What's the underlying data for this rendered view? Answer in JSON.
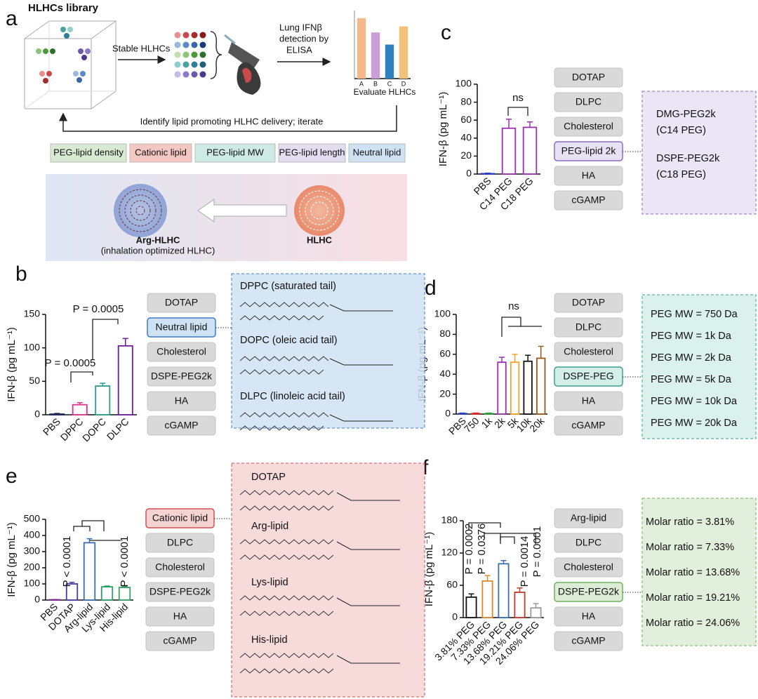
{
  "panel_labels": [
    "a",
    "b",
    "c",
    "d",
    "e",
    "f"
  ],
  "schematic": {
    "title": "HLHCs library",
    "stable": "Stable HLHCs",
    "elisa": [
      "Lung IFNβ",
      "detection by",
      "ELISA"
    ],
    "feedback": "Identify lipid promoting HLHC delivery; iterate",
    "tags": [
      "PEG-lipid density",
      "Cationic lipid",
      "PEG-lipid MW",
      "PEG-lipid length",
      "Neutral lipid"
    ],
    "tag_colors": [
      "#d9ead3",
      "#f4c7c3",
      "#cdeae5",
      "#e4dcf1",
      "#cfe2f3"
    ],
    "optimized": "Arg-HLHC",
    "optimized_note": "(inhalation optimized HLHC)",
    "start": "HLHC"
  },
  "chart_data": [
    {
      "type": "bar",
      "xlabel": "Evaluate HLHCs",
      "categories": [
        "A",
        "B",
        "C",
        "D"
      ],
      "values": [
        16,
        12.2,
        9,
        13.8
      ],
      "colors": [
        "#f5b98a",
        "#c9a0d6",
        "#2f7fc1",
        "#f2c27a"
      ],
      "ylim": [
        0,
        18
      ]
    },
    {
      "type": "bar",
      "ylabel": "IFN-β (pg mL⁻¹)",
      "categories": [
        "PBS",
        "DPPC",
        "DOPC",
        "DLPC"
      ],
      "values": [
        1,
        15,
        43,
        103
      ],
      "errors": [
        1,
        3,
        4,
        11
      ],
      "colors": [
        "#1f2a5a",
        "#e0338a",
        "#2a9d8f",
        "#6a1b9a"
      ],
      "ylim": [
        0,
        150
      ],
      "yticks": [
        0,
        50,
        100,
        150
      ],
      "annotations": [
        "P = 0.0005",
        "P = 0.0005"
      ]
    },
    {
      "type": "bar",
      "ylabel": "IFN-β (pg mL⁻¹)",
      "categories": [
        "PBS",
        "C14 PEG",
        "C18 PEG"
      ],
      "values": [
        0.5,
        51,
        52
      ],
      "errors": [
        0.5,
        10,
        6
      ],
      "colors": [
        "#2a3fbf",
        "#9b30b0",
        "#9b30b0"
      ],
      "ylim": [
        0,
        100
      ],
      "yticks": [
        0,
        20,
        40,
        60,
        80,
        100
      ],
      "annotations": [
        "ns"
      ]
    },
    {
      "type": "bar",
      "ylabel": "IFN-β (pg mL⁻¹)",
      "categories": [
        "PBS",
        "750",
        "1k",
        "2k",
        "5k",
        "10k",
        "20k"
      ],
      "values": [
        0.5,
        0.5,
        0.5,
        52,
        52,
        53,
        56
      ],
      "errors": [
        0.5,
        0.5,
        0.5,
        5,
        8,
        6,
        12
      ],
      "colors": [
        "#2a3fbf",
        "#d62828",
        "#2a9d3a",
        "#9b30b0",
        "#f4a22d",
        "#111111",
        "#9c5a1a"
      ],
      "ylim": [
        0,
        100
      ],
      "yticks": [
        0,
        20,
        40,
        60,
        80,
        100
      ],
      "annotations": [
        "ns"
      ]
    },
    {
      "type": "bar",
      "ylabel": "IFN-β (pg mL⁻¹)",
      "categories": [
        "PBS",
        "DOTAP",
        "Arg-lipid",
        "Lys-lipid",
        "His-lipid"
      ],
      "values": [
        2,
        100,
        355,
        82,
        78
      ],
      "errors": [
        1,
        10,
        25,
        5,
        6
      ],
      "colors": [
        "#7b2d8e",
        "#4b3aa0",
        "#3a6fb0",
        "#2a9d6a",
        "#3aa06a"
      ],
      "ylim": [
        0,
        500
      ],
      "yticks": [
        0,
        100,
        200,
        300,
        400,
        500
      ],
      "annotations": [
        "P < 0.0001",
        "P < 0.0001"
      ]
    },
    {
      "type": "bar",
      "ylabel": "IFN-β (pg mL⁻¹)",
      "categories": [
        "3.81% PEG",
        "7.33% PEG",
        "13.68% PEG",
        "19.21% PEG",
        "24.06% PEG"
      ],
      "values": [
        38,
        68,
        100,
        47,
        18
      ],
      "errors": [
        6,
        10,
        6,
        8,
        8
      ],
      "colors": [
        "#111111",
        "#d9892a",
        "#3a6fb0",
        "#c0392b",
        "#999999"
      ],
      "ylim": [
        0,
        180
      ],
      "yticks": [
        0,
        60,
        120,
        180
      ],
      "annotations": [
        "P = 0.0002",
        "P = 0.0376",
        "P = 0.0014",
        "P = 0.0001"
      ]
    }
  ],
  "formulations": [
    {
      "components": [
        "DOTAP",
        "Neutral lipid",
        "Cholesterol",
        "DSPE-PEG2k",
        "HA",
        "cGAMP"
      ],
      "highlight": 1,
      "color": "#cfe2f3",
      "border": "#3d7cc9",
      "info": [
        "DPPC (saturated tail)",
        "DOPC (oleic acid tail)",
        "DLPC (linoleic acid tail)"
      ]
    },
    {
      "components": [
        "DOTAP",
        "DLPC",
        "Cholesterol",
        "PEG-lipid 2k",
        "HA",
        "cGAMP"
      ],
      "highlight": 3,
      "color": "#e8e1f3",
      "border": "#8a6cc0",
      "info": [
        "DMG-PEG2k",
        "(C14 PEG)",
        "DSPE-PEG2k",
        "(C18 PEG)"
      ]
    },
    {
      "components": [
        "DOTAP",
        "DLPC",
        "Cholesterol",
        "DSPE-PEG",
        "HA",
        "cGAMP"
      ],
      "highlight": 3,
      "color": "#d4eee9",
      "border": "#3aa290",
      "info": [
        "PEG MW = 750 Da",
        "PEG MW = 1k Da",
        "PEG MW = 2k Da",
        "PEG MW = 5k Da",
        "PEG MW = 10k Da",
        "PEG MW = 20k Da"
      ]
    },
    {
      "components": [
        "Cationic lipid",
        "DLPC",
        "Cholesterol",
        "DSPE-PEG2k",
        "HA",
        "cGAMP"
      ],
      "highlight": 0,
      "color": "#f6d3d3",
      "border": "#d05050",
      "info": [
        "DOTAP",
        "Arg-lipid",
        "Lys-lipid",
        "His-lipid"
      ]
    },
    {
      "components": [
        "Arg-lipid",
        "DLPC",
        "Cholesterol",
        "DSPE-PEG2k",
        "HA",
        "cGAMP"
      ],
      "highlight": 3,
      "color": "#dcecd6",
      "border": "#6db35a",
      "info": [
        "Molar ratio = 3.81%",
        "Molar ratio = 7.33%",
        "Molar ratio = 13.68%",
        "Molar ratio = 19.21%",
        "Molar ratio = 24.06%"
      ]
    }
  ]
}
